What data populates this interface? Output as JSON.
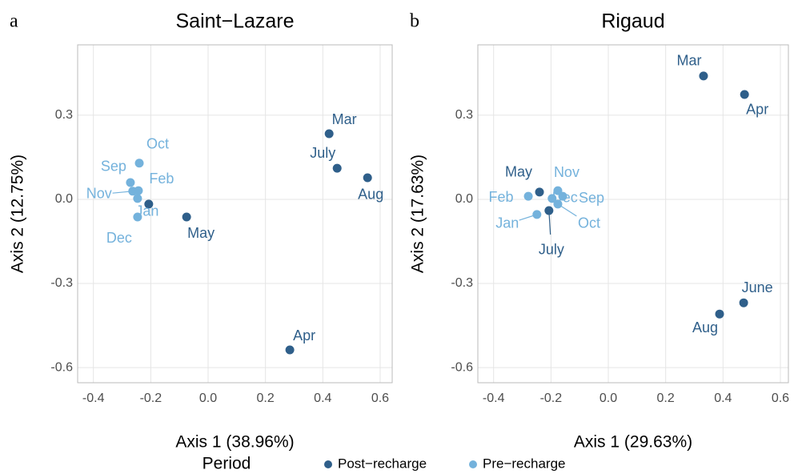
{
  "legend_title": "Period",
  "chart_data": [
    {
      "type": "scatter",
      "panel": "a",
      "title": "Saint−Lazare",
      "x_label": "Axis 1 (38.96%)",
      "y_label": "Axis 2 (12.75%)",
      "xlim": [
        -0.455,
        0.642
      ],
      "ylim": [
        -0.654,
        0.551
      ],
      "xticks": [
        -0.4,
        -0.2,
        {
          "value": 0,
          "label": "0.0"
        },
        0.2,
        0.4,
        0.6
      ],
      "yticks": [
        -0.6,
        -0.3,
        {
          "value": 0,
          "label": "0.0"
        },
        0.3
      ],
      "grid": true,
      "series": [
        {
          "name": "Post−recharge",
          "color": "#2f5f8a",
          "labels": [
            "Mar",
            "Apr",
            "May",
            null,
            "July",
            "Aug"
          ],
          "x": [
            0.422,
            0.285,
            -0.075,
            -0.207,
            0.45,
            0.556
          ],
          "y": [
            0.234,
            -0.537,
            -0.063,
            -0.017,
            0.111,
            0.077
          ]
        },
        {
          "name": "Pre−recharge",
          "color": "#74b2dc",
          "labels": [
            "Sep",
            "Oct",
            "Nov",
            "Dec",
            "Jan",
            "Feb"
          ],
          "x": [
            -0.271,
            -0.24,
            -0.263,
            -0.246,
            -0.246,
            -0.243
          ],
          "y": [
            0.06,
            0.129,
            0.029,
            -0.063,
            0.003,
            0.031
          ]
        }
      ]
    },
    {
      "type": "scatter",
      "panel": "b",
      "title": "Rigaud",
      "x_label": "Axis 1 (29.63%)",
      "y_label": "Axis 2 (17.63%)",
      "xlim": [
        -0.455,
        0.628
      ],
      "ylim": [
        -0.654,
        0.551
      ],
      "xticks": [
        -0.4,
        -0.2,
        {
          "value": 0,
          "label": "0.0"
        },
        0.2,
        0.4,
        0.6
      ],
      "yticks": [
        -0.6,
        -0.3,
        {
          "value": 0,
          "label": "0.0"
        },
        0.3
      ],
      "grid": true,
      "series": [
        {
          "name": "Post−recharge",
          "color": "#2f5f8a",
          "labels": [
            "Mar",
            "Apr",
            "May",
            "June",
            "July",
            "Aug"
          ],
          "x": [
            0.332,
            0.475,
            -0.24,
            0.472,
            -0.207,
            0.388
          ],
          "y": [
            0.44,
            0.374,
            0.026,
            -0.369,
            -0.04,
            -0.409
          ]
        },
        {
          "name": "Pre−recharge",
          "color": "#74b2dc",
          "labels": [
            "Sep",
            "Oct",
            "Nov",
            "Dec",
            "Jan",
            "Feb"
          ],
          "x": [
            -0.159,
            -0.176,
            -0.176,
            -0.196,
            -0.249,
            -0.279
          ],
          "y": [
            0.011,
            -0.017,
            0.031,
            0.003,
            -0.054,
            0.011
          ]
        }
      ]
    }
  ]
}
